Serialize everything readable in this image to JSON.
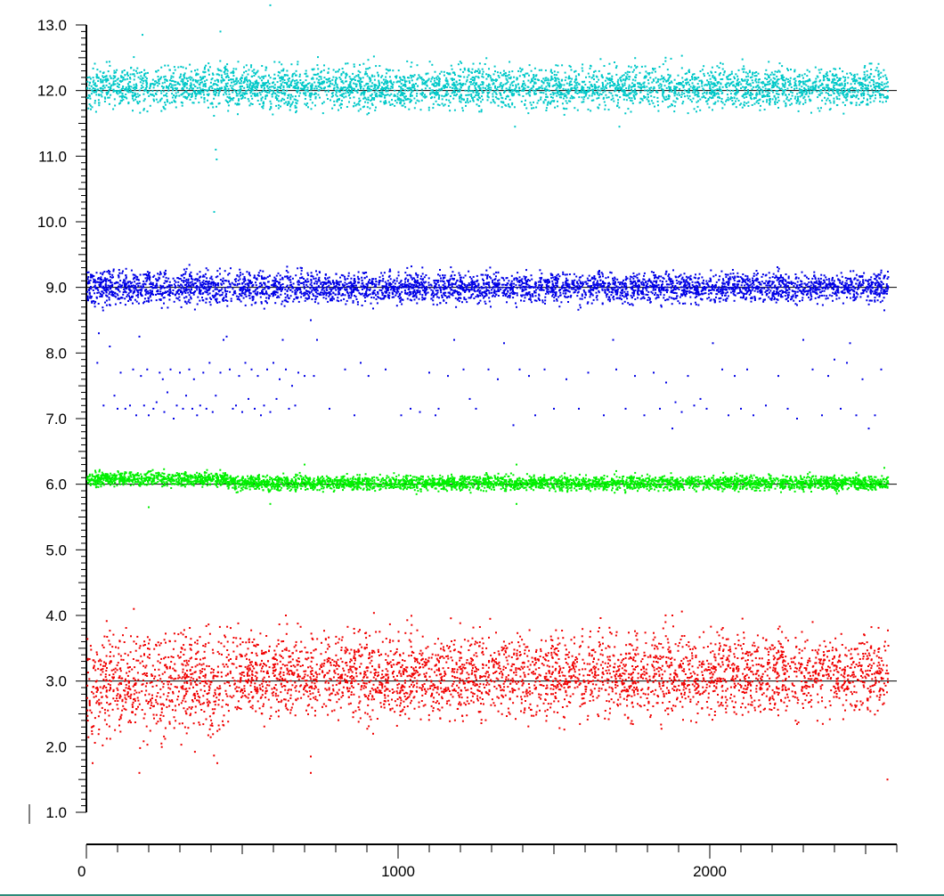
{
  "chart_data": {
    "type": "scatter",
    "title": "",
    "xlabel": "",
    "ylabel": "",
    "xlim": [
      0,
      2600
    ],
    "ylim": [
      1.0,
      13.0
    ],
    "x_ticks": [
      0,
      1000,
      2000
    ],
    "x_tick_labels": [
      "0",
      "1000",
      "2000"
    ],
    "y_ticks": [
      1.0,
      2.0,
      3.0,
      4.0,
      5.0,
      6.0,
      7.0,
      8.0,
      9.0,
      10.0,
      11.0,
      12.0,
      13.0
    ],
    "y_tick_labels": [
      "1.0",
      "2.0",
      "3.0",
      "4.0",
      "5.0",
      "6.0",
      "7.0",
      "8.0",
      "9.0",
      "10.0",
      "11.0",
      "12.0",
      "13.0"
    ],
    "grid": false,
    "legend": "none",
    "reference_lines_y": [
      3.0,
      6.0,
      9.0,
      12.0
    ],
    "series": [
      {
        "color": "#00c8c8",
        "x_range": [
          0,
          2570
        ],
        "center": 12.05,
        "spread": 0.35,
        "outliers": [
          [
            180,
            12.85
          ],
          [
            430,
            12.9
          ],
          [
            590,
            13.3
          ],
          [
            415,
            11.1
          ],
          [
            418,
            10.95
          ],
          [
            410,
            10.15
          ],
          [
            1375,
            11.45
          ],
          [
            1710,
            11.45
          ]
        ]
      },
      {
        "color": "#0000e6",
        "x_range": [
          0,
          2570
        ],
        "center": 9.0,
        "spread": 0.25,
        "outliers": [
          [
            720,
            8.5
          ],
          [
            1380,
            8.7
          ],
          [
            2560,
            8.65
          ]
        ],
        "scattered_points": [
          [
            35,
            7.85
          ],
          [
            40,
            8.3
          ],
          [
            55,
            7.2
          ],
          [
            75,
            8.1
          ],
          [
            90,
            7.35
          ],
          [
            100,
            7.15
          ],
          [
            110,
            7.7
          ],
          [
            125,
            7.15
          ],
          [
            140,
            7.2
          ],
          [
            150,
            7.75
          ],
          [
            160,
            7.05
          ],
          [
            170,
            8.25
          ],
          [
            175,
            7.65
          ],
          [
            185,
            7.2
          ],
          [
            195,
            7.75
          ],
          [
            200,
            7.05
          ],
          [
            215,
            7.15
          ],
          [
            225,
            7.25
          ],
          [
            235,
            7.7
          ],
          [
            245,
            7.6
          ],
          [
            250,
            7.1
          ],
          [
            260,
            7.4
          ],
          [
            270,
            7.75
          ],
          [
            280,
            7.0
          ],
          [
            290,
            7.2
          ],
          [
            300,
            7.7
          ],
          [
            310,
            7.15
          ],
          [
            320,
            7.35
          ],
          [
            330,
            7.75
          ],
          [
            340,
            7.15
          ],
          [
            345,
            7.6
          ],
          [
            355,
            7.05
          ],
          [
            365,
            7.2
          ],
          [
            375,
            7.7
          ],
          [
            385,
            7.15
          ],
          [
            395,
            7.85
          ],
          [
            405,
            7.1
          ],
          [
            415,
            7.35
          ],
          [
            430,
            7.7
          ],
          [
            440,
            8.2
          ],
          [
            450,
            8.25
          ],
          [
            460,
            7.75
          ],
          [
            470,
            7.15
          ],
          [
            480,
            7.2
          ],
          [
            490,
            7.65
          ],
          [
            500,
            7.1
          ],
          [
            510,
            7.85
          ],
          [
            520,
            7.3
          ],
          [
            530,
            7.75
          ],
          [
            540,
            7.15
          ],
          [
            550,
            7.65
          ],
          [
            560,
            7.05
          ],
          [
            570,
            7.2
          ],
          [
            580,
            7.75
          ],
          [
            590,
            7.1
          ],
          [
            600,
            7.85
          ],
          [
            610,
            7.3
          ],
          [
            620,
            7.6
          ],
          [
            630,
            8.2
          ],
          [
            640,
            7.75
          ],
          [
            650,
            7.15
          ],
          [
            660,
            7.5
          ],
          [
            670,
            7.2
          ],
          [
            680,
            7.7
          ],
          [
            700,
            7.65
          ],
          [
            730,
            7.65
          ],
          [
            740,
            8.2
          ],
          [
            780,
            7.15
          ],
          [
            830,
            7.75
          ],
          [
            860,
            7.05
          ],
          [
            880,
            7.85
          ],
          [
            905,
            7.65
          ],
          [
            960,
            7.75
          ],
          [
            1010,
            7.05
          ],
          [
            1040,
            7.15
          ],
          [
            1070,
            7.1
          ],
          [
            1100,
            7.7
          ],
          [
            1120,
            7.05
          ],
          [
            1130,
            7.15
          ],
          [
            1160,
            7.65
          ],
          [
            1180,
            8.2
          ],
          [
            1210,
            7.75
          ],
          [
            1230,
            7.3
          ],
          [
            1250,
            7.15
          ],
          [
            1290,
            7.75
          ],
          [
            1320,
            7.6
          ],
          [
            1340,
            8.15
          ],
          [
            1370,
            6.9
          ],
          [
            1390,
            7.75
          ],
          [
            1420,
            7.65
          ],
          [
            1440,
            7.05
          ],
          [
            1470,
            7.75
          ],
          [
            1500,
            7.15
          ],
          [
            1540,
            7.6
          ],
          [
            1580,
            7.15
          ],
          [
            1610,
            7.7
          ],
          [
            1660,
            7.05
          ],
          [
            1690,
            8.2
          ],
          [
            1700,
            7.75
          ],
          [
            1730,
            7.15
          ],
          [
            1760,
            7.65
          ],
          [
            1790,
            7.05
          ],
          [
            1820,
            7.7
          ],
          [
            1840,
            7.15
          ],
          [
            1860,
            7.55
          ],
          [
            1880,
            6.85
          ],
          [
            1890,
            7.25
          ],
          [
            1910,
            7.1
          ],
          [
            1930,
            7.65
          ],
          [
            1950,
            7.2
          ],
          [
            1970,
            7.3
          ],
          [
            1990,
            7.15
          ],
          [
            2010,
            8.15
          ],
          [
            2040,
            7.75
          ],
          [
            2060,
            7.05
          ],
          [
            2080,
            7.65
          ],
          [
            2100,
            7.15
          ],
          [
            2120,
            7.75
          ],
          [
            2140,
            7.05
          ],
          [
            2180,
            7.2
          ],
          [
            2220,
            7.65
          ],
          [
            2250,
            7.15
          ],
          [
            2280,
            7.0
          ],
          [
            2300,
            8.2
          ],
          [
            2330,
            7.75
          ],
          [
            2360,
            7.05
          ],
          [
            2380,
            7.65
          ],
          [
            2400,
            7.9
          ],
          [
            2420,
            7.15
          ],
          [
            2440,
            7.85
          ],
          [
            2450,
            8.15
          ],
          [
            2470,
            7.05
          ],
          [
            2490,
            7.6
          ],
          [
            2510,
            6.85
          ],
          [
            2530,
            7.05
          ],
          [
            2550,
            7.75
          ]
        ]
      },
      {
        "color": "#00f000",
        "x_range": [
          0,
          2570
        ],
        "center": 6.02,
        "spread": 0.12,
        "outliers": [
          [
            200,
            5.65
          ],
          [
            590,
            5.7
          ],
          [
            700,
            6.3
          ],
          [
            1380,
            6.3
          ],
          [
            1380,
            5.7
          ],
          [
            1700,
            6.2
          ],
          [
            2560,
            6.25
          ]
        ]
      },
      {
        "color": "#f00000",
        "x_range": [
          0,
          2570
        ],
        "center": 3.1,
        "spread": 0.7,
        "outliers": [
          [
            20,
            1.75
          ],
          [
            170,
            1.6
          ],
          [
            420,
            1.75
          ],
          [
            720,
            1.6
          ],
          [
            720,
            1.85
          ],
          [
            640,
            4.0
          ],
          [
            1880,
            4.0
          ],
          [
            2330,
            3.9
          ],
          [
            2570,
            1.5
          ]
        ]
      }
    ]
  }
}
